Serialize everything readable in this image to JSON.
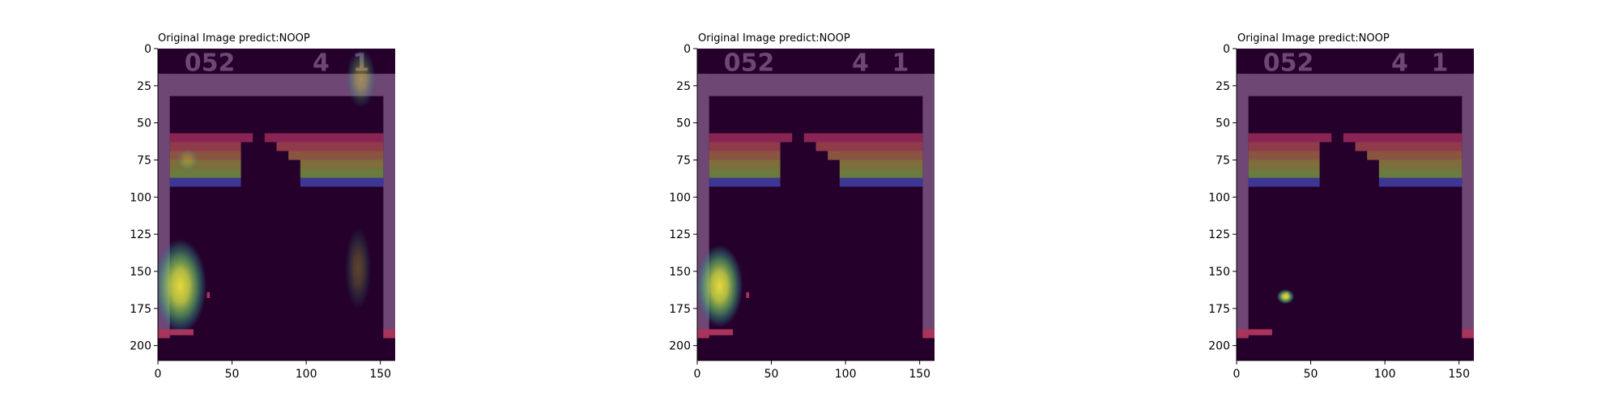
{
  "chart_data": [
    {
      "type": "heatmap",
      "title": "Original Image predict:NOOP",
      "xlabel": "",
      "ylabel": "",
      "xlim": [
        0,
        160
      ],
      "ylim": [
        210,
        0
      ],
      "xticks": [
        0,
        50,
        100,
        150
      ],
      "yticks": [
        0,
        25,
        50,
        75,
        100,
        125,
        150,
        175,
        200
      ],
      "score": "052",
      "lives": "4",
      "level": "1",
      "grid": false,
      "saliency": [
        {
          "x": 15,
          "y": 160,
          "rx": 18,
          "ry": 32,
          "strength": 1.0
        },
        {
          "x": 137,
          "y": 20,
          "rx": 10,
          "ry": 20,
          "strength": 0.45
        },
        {
          "x": 135,
          "y": 148,
          "rx": 9,
          "ry": 28,
          "strength": 0.3
        },
        {
          "x": 20,
          "y": 75,
          "rx": 8,
          "ry": 8,
          "strength": 0.3
        }
      ]
    },
    {
      "type": "heatmap",
      "title": "Original Image predict:NOOP",
      "xlabel": "",
      "ylabel": "",
      "xlim": [
        0,
        160
      ],
      "ylim": [
        210,
        0
      ],
      "xticks": [
        0,
        50,
        100,
        150
      ],
      "yticks": [
        0,
        25,
        50,
        75,
        100,
        125,
        150,
        175,
        200
      ],
      "score": "052",
      "lives": "4",
      "level": "1",
      "grid": false,
      "saliency": [
        {
          "x": 15,
          "y": 160,
          "rx": 16,
          "ry": 28,
          "strength": 1.0
        }
      ]
    },
    {
      "type": "heatmap",
      "title": "Original Image predict:NOOP",
      "xlabel": "",
      "ylabel": "",
      "xlim": [
        0,
        160
      ],
      "ylim": [
        210,
        0
      ],
      "xticks": [
        0,
        50,
        100,
        150
      ],
      "yticks": [
        0,
        25,
        50,
        75,
        100,
        125,
        150,
        175,
        200
      ],
      "score": "052",
      "lives": "4",
      "level": "1",
      "grid": false,
      "saliency": [
        {
          "x": 33,
          "y": 167,
          "rx": 6,
          "ry": 5,
          "strength": 1.0
        }
      ]
    }
  ],
  "colors": {
    "background": "#24002a",
    "wall": "#6e4774",
    "brick_rows": [
      "#8a2454",
      "#903b4a",
      "#8a5540",
      "#7e6e3c",
      "#6b7a3e",
      "#3e3694"
    ],
    "paddle": "#a8345c",
    "ball": "#a8345c",
    "hud_digits": "#6e4774",
    "heat_core": "#f0e53c",
    "heat_mid": "#5cbc6c",
    "heat_outer": "#2c8c8c"
  }
}
